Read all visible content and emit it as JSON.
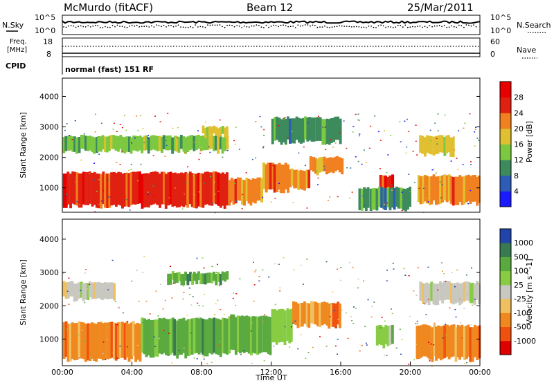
{
  "header": {
    "station": "McMurdo (fitACF)",
    "beam": "Beam 12",
    "date": "25/Mar/2011"
  },
  "summary_panel": {
    "nsky_label": "N.Sky",
    "nsearch_label": "N.Search",
    "noise_ticks_left": [
      "10^5",
      "10^0"
    ],
    "noise_ticks_right": [
      "10^5",
      "10^0"
    ],
    "freq_label_line1": "Freq.",
    "freq_label_line2": "[MHz]",
    "freq_ticks": [
      "18",
      "8"
    ],
    "nave_label": "Nave",
    "nave_ticks": [
      "60",
      "0"
    ],
    "cpid_label": "CPID",
    "cpid_text": "normal (fast) 151 RF"
  },
  "chart_data": [
    {
      "type": "heatmap",
      "name": "power",
      "ylabel": "Slant Range [km]",
      "xlabel": "",
      "yticks": [
        "1000",
        "2000",
        "3000",
        "4000"
      ],
      "ylim": [
        200,
        4600
      ],
      "xlim": [
        0,
        24
      ],
      "colorbar": {
        "label": "Power [dB]",
        "ticks": [
          "4",
          "8",
          "12",
          "16",
          "20",
          "24",
          "28"
        ],
        "range": [
          0,
          32
        ],
        "colors": [
          "#1a1aff",
          "#2e5bb5",
          "#3d8a5c",
          "#7cc840",
          "#e0c030",
          "#f08020",
          "#e02010",
          "#e80000"
        ]
      },
      "bands": [
        {
          "t0": 0.0,
          "t1": 9.5,
          "r0": 400,
          "r1": 1500,
          "level": 26
        },
        {
          "t0": 9.5,
          "t1": 11.5,
          "r0": 500,
          "r1": 1300,
          "level": 24
        },
        {
          "t0": 11.5,
          "t1": 13.0,
          "r0": 900,
          "r1": 1800,
          "level": 24
        },
        {
          "t0": 13.0,
          "t1": 14.2,
          "r0": 1000,
          "r1": 1600,
          "level": 22
        },
        {
          "t0": 14.2,
          "t1": 16.1,
          "r0": 1500,
          "r1": 2000,
          "level": 24
        },
        {
          "t0": 18.2,
          "t1": 19.0,
          "r0": 800,
          "r1": 1400,
          "level": 26
        },
        {
          "t0": 20.4,
          "t1": 24.0,
          "r0": 500,
          "r1": 1400,
          "level": 25
        },
        {
          "t0": 0.0,
          "t1": 9.5,
          "r0": 2200,
          "r1": 2700,
          "level": 14
        },
        {
          "t0": 8.0,
          "t1": 9.5,
          "r0": 2700,
          "r1": 3000,
          "level": 20
        },
        {
          "t0": 12.0,
          "t1": 16.0,
          "r0": 2500,
          "r1": 3300,
          "level": 8
        },
        {
          "t0": 20.5,
          "t1": 22.5,
          "r0": 2100,
          "r1": 2700,
          "level": 16
        },
        {
          "t0": 17.0,
          "t1": 20.0,
          "r0": 300,
          "r1": 1000,
          "level": 8
        }
      ]
    },
    {
      "type": "heatmap",
      "name": "velocity",
      "ylabel": "Slant Range [km]",
      "xlabel": "Time UT",
      "yticks": [
        "1000",
        "2000",
        "3000",
        "4000"
      ],
      "xticks": [
        "00:00",
        "04:00",
        "08:00",
        "12:00",
        "16:00",
        "20:00",
        "00:00"
      ],
      "ylim": [
        200,
        4600
      ],
      "xlim": [
        0,
        24
      ],
      "colorbar": {
        "label": "Velocity [m s^-1]",
        "ticks": [
          "1000",
          "500",
          "100",
          "25",
          "-25",
          "-100",
          "-500",
          "-1000"
        ],
        "colors": [
          "#2244aa",
          "#3a7a50",
          "#5aaa40",
          "#88cc44",
          "#c8c8c0",
          "#f0c060",
          "#f08820",
          "#f05010",
          "#e00000"
        ]
      },
      "bands": [
        {
          "t0": 0.0,
          "t1": 4.5,
          "r0": 400,
          "r1": 1500,
          "vel": -200
        },
        {
          "t0": 4.5,
          "t1": 9.5,
          "r0": 500,
          "r1": 1600,
          "vel": 200
        },
        {
          "t0": 9.5,
          "t1": 12.0,
          "r0": 600,
          "r1": 1700,
          "vel": 150
        },
        {
          "t0": 12.0,
          "t1": 13.2,
          "r0": 900,
          "r1": 1900,
          "vel": 80
        },
        {
          "t0": 13.2,
          "t1": 16.0,
          "r0": 1400,
          "r1": 2100,
          "vel": -150
        },
        {
          "t0": 18.0,
          "t1": 19.0,
          "r0": 800,
          "r1": 1400,
          "vel": 60
        },
        {
          "t0": 20.3,
          "t1": 24.0,
          "r0": 400,
          "r1": 1400,
          "vel": -150
        },
        {
          "t0": 0.0,
          "t1": 3.0,
          "r0": 2200,
          "r1": 2700,
          "vel": 0
        },
        {
          "t0": 6.0,
          "t1": 9.5,
          "r0": 2700,
          "r1": 3000,
          "vel": 100
        },
        {
          "t0": 20.5,
          "t1": 24.0,
          "r0": 2100,
          "r1": 2700,
          "vel": 0
        }
      ]
    }
  ]
}
